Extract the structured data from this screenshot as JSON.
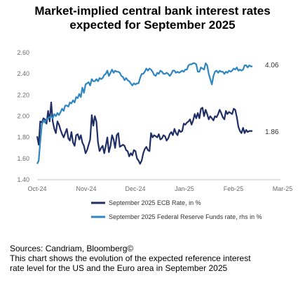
{
  "title_line1": "Market-implied central bank interest rates",
  "title_line2": "expected for September 2025",
  "sources": "Sources: Candriam, Bloomberg©",
  "note_line1": "This chart shows the evolution of the expected reference interest",
  "note_line2": "rate level for the US and the Euro area in September 2025",
  "chart_data": {
    "type": "line",
    "title": "Market-implied central bank interest rates expected for September 2025",
    "x_ticks": [
      "Oct-24",
      "Nov-24",
      "Dec-24",
      "Jan-25",
      "Feb-25",
      "Mar-25"
    ],
    "y_ticks": [
      "2.60",
      "2.40",
      "2.20",
      "2.00",
      "1.80",
      "1.60",
      "1.40"
    ],
    "ylim": [
      1.4,
      2.6
    ],
    "x_range_days": [
      0,
      151
    ],
    "grid": false,
    "legend_position": "bottom",
    "end_labels": [
      "4.06",
      "1.86"
    ],
    "series": [
      {
        "name": "September 2025 ECB Rate, in %",
        "color": "#1f2f66",
        "x": [
          0,
          1,
          2,
          3,
          4,
          5,
          6,
          7,
          8,
          9,
          10,
          11,
          12,
          13,
          14,
          15,
          16,
          17,
          18,
          19,
          20,
          21,
          22,
          23,
          24,
          25,
          26,
          27,
          28,
          29,
          30,
          31,
          32,
          33,
          34,
          35,
          36,
          37,
          38,
          39,
          40,
          41,
          42,
          43,
          44,
          45,
          46,
          47,
          48,
          49,
          50,
          51,
          52,
          53,
          54,
          55,
          56,
          57,
          58,
          59,
          60,
          61,
          62,
          63,
          64,
          65,
          66,
          67,
          68,
          69,
          70,
          71,
          72,
          73,
          74,
          75,
          76,
          77,
          78,
          79,
          80,
          81,
          82,
          83,
          84,
          85,
          86,
          87,
          88,
          89,
          90,
          91,
          92,
          93,
          94,
          95,
          96,
          97,
          98,
          99,
          100,
          101,
          102,
          103,
          104,
          105,
          106,
          107,
          108,
          109,
          110,
          111,
          112,
          113,
          114,
          115,
          116,
          117,
          118,
          119,
          120,
          121,
          122,
          123,
          124,
          125,
          126,
          127,
          128,
          129,
          130,
          131,
          132,
          133,
          134,
          135,
          136,
          137,
          138
        ],
        "values": [
          1.81,
          1.73,
          1.95,
          1.94,
          1.98,
          1.97,
          1.93,
          2.05,
          1.95,
          2.13,
          1.95,
          1.88,
          1.84,
          1.95,
          1.92,
          1.87,
          1.83,
          1.8,
          1.84,
          1.88,
          1.79,
          1.77,
          1.85,
          1.75,
          1.72,
          1.82,
          1.83,
          1.78,
          1.82,
          1.75,
          1.72,
          1.65,
          1.68,
          1.73,
          1.78,
          2.01,
          1.91,
          2.0,
          1.95,
          1.75,
          1.67,
          1.7,
          1.72,
          1.65,
          1.72,
          1.8,
          1.66,
          1.72,
          1.82,
          1.78,
          1.7,
          1.82,
          1.84,
          1.71,
          1.72,
          1.73,
          1.72,
          1.68,
          1.67,
          1.62,
          1.65,
          1.63,
          1.68,
          1.67,
          1.6,
          1.58,
          1.55,
          1.58,
          1.65,
          1.69,
          1.71,
          1.68,
          1.67,
          1.84,
          1.8,
          1.82,
          1.81,
          1.8,
          1.83,
          1.78,
          1.79,
          1.82,
          1.81,
          1.77,
          1.79,
          1.83,
          1.85,
          1.82,
          1.88,
          1.84,
          1.82,
          1.87,
          1.85,
          1.86,
          1.93,
          1.92,
          1.94,
          1.95,
          1.97,
          1.92,
          1.96,
          2.02,
          1.98,
          2.03,
          1.98,
          2.07,
          2.08,
          2.0,
          2.06,
          2.02,
          1.97,
          2.0,
          1.98,
          1.96,
          2.0,
          1.99,
          2.02,
          2.06,
          2.03,
          1.99,
          1.97,
          2.05,
          2.02,
          2.04,
          2.03,
          2.02,
          2.07,
          2.06,
          1.99,
          1.9,
          1.86,
          1.84,
          1.89,
          1.84,
          1.87,
          1.85,
          1.86,
          1.86,
          1.86
        ]
      },
      {
        "name": "September 2025 Federal Reserve Funds rate, rhs in %",
        "color": "#2e86c1",
        "x": [
          0,
          1,
          2,
          3,
          4,
          5,
          6,
          7,
          8,
          9,
          10,
          11,
          12,
          13,
          14,
          15,
          16,
          17,
          18,
          19,
          20,
          21,
          22,
          23,
          24,
          25,
          26,
          27,
          28,
          29,
          30,
          31,
          32,
          33,
          34,
          35,
          36,
          37,
          38,
          39,
          40,
          41,
          42,
          43,
          44,
          45,
          46,
          47,
          48,
          49,
          50,
          51,
          52,
          53,
          54,
          55,
          56,
          57,
          58,
          59,
          60,
          61,
          62,
          63,
          64,
          65,
          66,
          67,
          68,
          69,
          70,
          71,
          72,
          73,
          74,
          75,
          76,
          77,
          78,
          79,
          80,
          81,
          82,
          83,
          84,
          85,
          86,
          87,
          88,
          89,
          90,
          91,
          92,
          93,
          94,
          95,
          96,
          97,
          98,
          99,
          100,
          101,
          102,
          103,
          104,
          105,
          106,
          107,
          108,
          109,
          110,
          111,
          112,
          113,
          114,
          115,
          116,
          117,
          118,
          119,
          120,
          121,
          122,
          123,
          124,
          125,
          126,
          127,
          128,
          129,
          130,
          131,
          132,
          133,
          134,
          135,
          136,
          137,
          138
        ],
        "values": [
          1.55,
          1.58,
          1.76,
          1.92,
          1.96,
          1.94,
          1.97,
          1.98,
          1.99,
          2.0,
          1.98,
          2.02,
          2.0,
          2.03,
          2.01,
          2.04,
          2.07,
          2.05,
          2.1,
          2.1,
          2.09,
          2.13,
          2.12,
          2.15,
          2.13,
          2.18,
          2.17,
          2.21,
          2.18,
          2.27,
          2.22,
          2.3,
          2.31,
          2.32,
          2.29,
          2.35,
          2.33,
          2.33,
          2.35,
          2.33,
          2.36,
          2.35,
          2.36,
          2.39,
          2.4,
          2.43,
          2.38,
          2.41,
          2.44,
          2.41,
          2.43,
          2.42,
          2.42,
          2.41,
          2.38,
          2.37,
          2.34,
          2.36,
          2.34,
          2.33,
          2.31,
          2.29,
          2.31,
          2.3,
          2.31,
          2.31,
          2.36,
          2.4,
          2.4,
          2.42,
          2.45,
          2.43,
          2.45,
          2.44,
          2.42,
          2.39,
          2.38,
          2.41,
          2.4,
          2.43,
          2.42,
          2.4,
          2.4,
          2.41,
          2.4,
          2.38,
          2.4,
          2.43,
          2.43,
          2.41,
          2.42,
          2.41,
          2.42,
          2.43,
          2.42,
          2.44,
          2.44,
          2.48,
          2.49,
          2.49,
          2.5,
          2.5,
          2.49,
          2.42,
          2.42,
          2.46,
          2.45,
          2.44,
          2.5,
          2.48,
          2.4,
          2.35,
          2.3,
          2.38,
          2.42,
          2.43,
          2.41,
          2.43,
          2.42,
          2.42,
          2.4,
          2.42,
          2.41,
          2.43,
          2.42,
          2.43,
          2.45,
          2.44,
          2.46,
          2.43,
          2.44,
          2.43,
          2.44,
          2.48,
          2.48,
          2.46,
          2.48,
          2.47,
          2.47
        ]
      }
    ]
  }
}
